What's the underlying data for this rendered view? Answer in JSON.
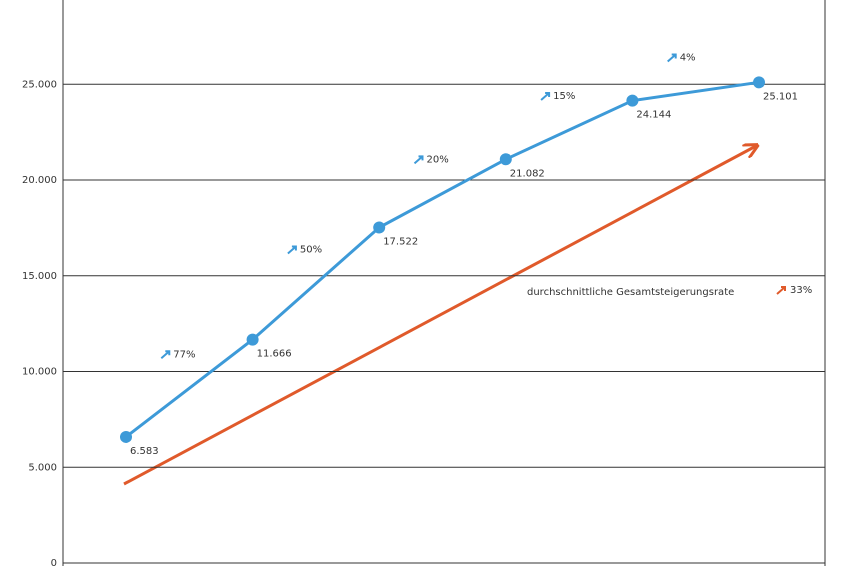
{
  "chart_data": {
    "type": "line",
    "categories": [
      null,
      null,
      null,
      null,
      null,
      null
    ],
    "series": [
      {
        "color": "#3d9ad8",
        "values": [
          6583,
          11666,
          17522,
          21082,
          24144,
          25101
        ],
        "value_labels": [
          "6.583",
          "11.666",
          "17.522",
          "21.082",
          "24.144",
          "25.101"
        ]
      }
    ],
    "ylim": [
      0,
      29400
    ],
    "yticks": [
      0,
      {
        "value": 5000,
        "label": "5.000"
      },
      {
        "value": 10000,
        "label": "10.000"
      },
      {
        "value": 15000,
        "label": "15.000"
      },
      {
        "value": 20000,
        "label": "20.000"
      },
      {
        "value": 25000,
        "label": "25.000"
      }
    ],
    "grid": true,
    "growth_labels": [
      "77%",
      "50%",
      "20%",
      "15%",
      "4%"
    ],
    "trend_color": "#e05a2b",
    "average_label": "durchschnittliche Gesamtsteigerungsrate",
    "average_rate": "33%"
  }
}
